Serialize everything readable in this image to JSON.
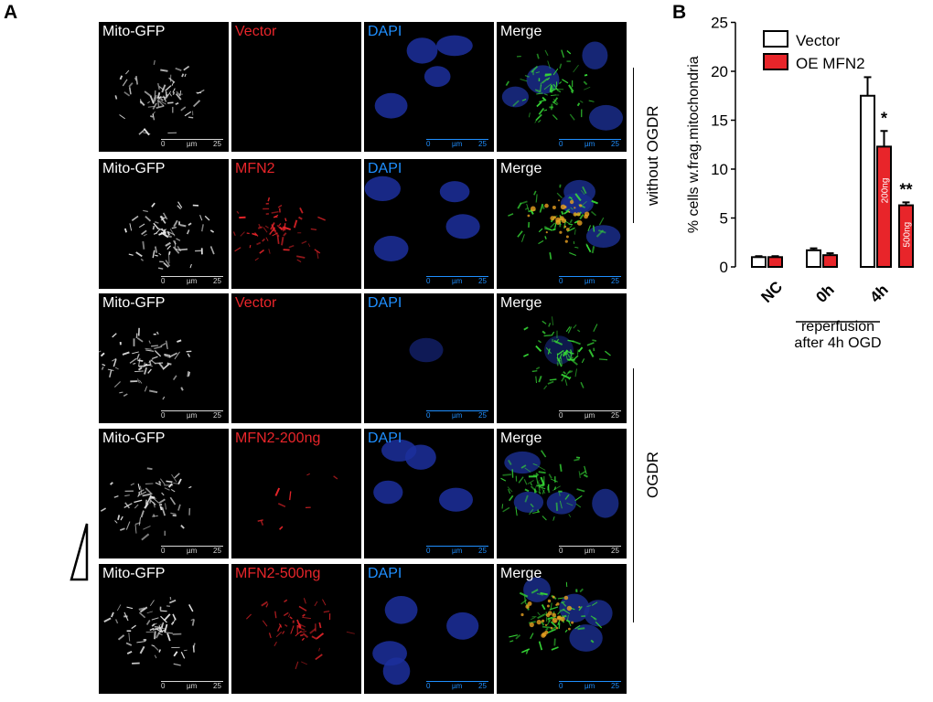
{
  "panel_a": {
    "letter": "A",
    "rows": [
      {
        "labels": [
          "Mito-GFP",
          "Vector",
          "DAPI",
          "Merge"
        ]
      },
      {
        "labels": [
          "Mito-GFP",
          "MFN2",
          "DAPI",
          "Merge"
        ]
      },
      {
        "labels": [
          "Mito-GFP",
          "Vector",
          "DAPI",
          "Merge"
        ]
      },
      {
        "labels": [
          "Mito-GFP",
          "MFN2-200ng",
          "DAPI",
          "Merge"
        ]
      },
      {
        "labels": [
          "Mito-GFP",
          "MFN2-500ng",
          "DAPI",
          "Merge"
        ]
      }
    ],
    "scalebar": {
      "start": "0",
      "unit": "µm",
      "end": "25"
    },
    "group_labels": {
      "top": "without OGDR",
      "bottom": "OGDR"
    },
    "colors": {
      "mito": "#ffffff",
      "mfn2": "#e8252a",
      "dapi": "#1f8fff",
      "merge_green": "#2fd82f"
    }
  },
  "panel_b": {
    "letter": "B",
    "annotation": "reperfusion after 4h OGD"
  },
  "chart_data": {
    "type": "bar",
    "categories": [
      "NC",
      "0h",
      "4h"
    ],
    "series": [
      {
        "name": "Vector",
        "values": [
          1.0,
          1.7,
          17.5
        ],
        "errors": [
          0.1,
          0.2,
          1.9
        ],
        "color": "#ffffff"
      },
      {
        "name": "OE MFN2",
        "values": [
          1.0,
          1.2,
          12.3
        ],
        "errors": [
          0.1,
          0.2,
          1.6
        ],
        "color": "#e8252a"
      },
      {
        "name": "OE MFN2 500ng",
        "values": [
          null,
          null,
          6.3
        ],
        "errors": [
          null,
          null,
          0.3
        ],
        "color": "#e8252a"
      }
    ],
    "bar_labels": [
      "200ng",
      "500ng"
    ],
    "significance": [
      "*",
      "**"
    ],
    "ylabel": "% cells w.frag.mitochondria",
    "ylim": [
      0,
      25
    ],
    "yticks": [
      0,
      5,
      10,
      15,
      20,
      25
    ],
    "xlabel_group": [
      "reperfusion",
      "after 4h OGD"
    ],
    "legend_position": "top-right"
  }
}
